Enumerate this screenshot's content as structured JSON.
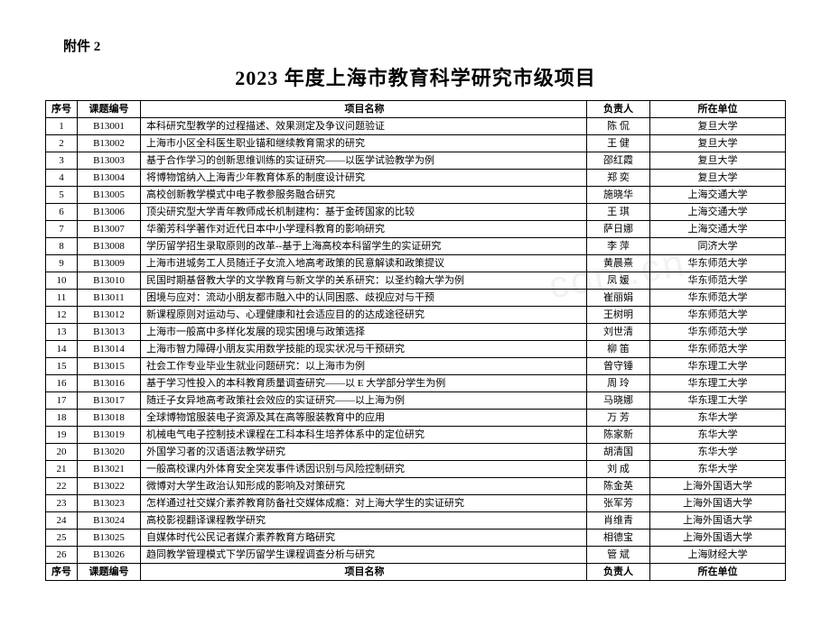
{
  "attachment_label": "附件 2",
  "title": "2023 年度上海市教育科学研究市级项目",
  "watermark": "com.cn",
  "headers": {
    "seq": "序号",
    "code": "课题编号",
    "name": "项目名称",
    "person": "负责人",
    "unit": "所在单位"
  },
  "rows": [
    {
      "seq": "1",
      "code": "B13001",
      "name": "本科研究型教学的过程描述、效果测定及争议问题验证",
      "person": "陈  侃",
      "unit": "复旦大学"
    },
    {
      "seq": "2",
      "code": "B13002",
      "name": "上海市小区全科医生职业锚和继续教育需求的研究",
      "person": "王  健",
      "unit": "复旦大学"
    },
    {
      "seq": "3",
      "code": "B13003",
      "name": "基于合作学习的创新思维训练的实证研究——以医学试验教学为例",
      "person": "邵红霞",
      "unit": "复旦大学"
    },
    {
      "seq": "4",
      "code": "B13004",
      "name": "将博物馆纳入上海青少年教育体系的制度设计研究",
      "person": "郑  奕",
      "unit": "复旦大学"
    },
    {
      "seq": "5",
      "code": "B13005",
      "name": "高校创新教学模式中电子教参服务融合研究",
      "person": "施晓华",
      "unit": "上海交通大学"
    },
    {
      "seq": "6",
      "code": "B13006",
      "name": "顶尖研究型大学青年教师成长机制建构：基于金砖国家的比较",
      "person": "王  琪",
      "unit": "上海交通大学"
    },
    {
      "seq": "7",
      "code": "B13007",
      "name": "华蘅芳科学著作对近代日本中小学理科教育的影响研究",
      "person": "萨日娜",
      "unit": "上海交通大学"
    },
    {
      "seq": "8",
      "code": "B13008",
      "name": "学历留学招生录取原则的改革--基于上海高校本科留学生的实证研究",
      "person": "李  萍",
      "unit": "同济大学"
    },
    {
      "seq": "9",
      "code": "B13009",
      "name": "上海市进城务工人员随迁子女流入地高考政策的民意解读和政策提议",
      "person": "黄晨熹",
      "unit": "华东师范大学"
    },
    {
      "seq": "10",
      "code": "B13010",
      "name": "民国时期基督教大学的文学教育与新文学的关系研究：以圣约翰大学为例",
      "person": "凤  媛",
      "unit": "华东师范大学"
    },
    {
      "seq": "11",
      "code": "B13011",
      "name": "困境与应对：流动小朋友都市融入中的认同困惑、歧视应对与干预",
      "person": "崔丽娟",
      "unit": "华东师范大学"
    },
    {
      "seq": "12",
      "code": "B13012",
      "name": "新课程原则对运动与、心理健康和社会适应目的的达成途径研究",
      "person": "王树明",
      "unit": "华东师范大学"
    },
    {
      "seq": "13",
      "code": "B13013",
      "name": "上海市一般高中多样化发展的现实困境与政策选择",
      "person": "刘世清",
      "unit": "华东师范大学"
    },
    {
      "seq": "14",
      "code": "B13014",
      "name": "上海市智力障碍小朋友实用数学技能的现实状况与干预研究",
      "person": "柳  笛",
      "unit": "华东师范大学"
    },
    {
      "seq": "15",
      "code": "B13015",
      "name": "社会工作专业毕业生就业问题研究：以上海市为例",
      "person": "曾守锤",
      "unit": "华东理工大学"
    },
    {
      "seq": "16",
      "code": "B13016",
      "name": "基于学习性投入的本科教育质量调查研究——以 E 大学部分学生为例",
      "person": "周  玲",
      "unit": "华东理工大学"
    },
    {
      "seq": "17",
      "code": "B13017",
      "name": "随迁子女异地高考政策社会效应的实证研究——以上海为例",
      "person": "马晓娜",
      "unit": "华东理工大学"
    },
    {
      "seq": "18",
      "code": "B13018",
      "name": "全球博物馆服装电子资源及其在高等服装教育中的应用",
      "person": "万  芳",
      "unit": "东华大学"
    },
    {
      "seq": "19",
      "code": "B13019",
      "name": "机械电气电子控制技术课程在工科本科生培养体系中的定位研究",
      "person": "陈家新",
      "unit": "东华大学"
    },
    {
      "seq": "20",
      "code": "B13020",
      "name": "外国学习者的汉语语法教学研究",
      "person": "胡清国",
      "unit": "东华大学"
    },
    {
      "seq": "21",
      "code": "B13021",
      "name": "一般高校课内外体育安全突发事件诱因识别与风险控制研究",
      "person": "刘  成",
      "unit": "东华大学"
    },
    {
      "seq": "22",
      "code": "B13022",
      "name": "微博对大学生政治认知形成的影响及对策研究",
      "person": "陈金英",
      "unit": "上海外国语大学"
    },
    {
      "seq": "23",
      "code": "B13023",
      "name": "怎样通过社交媒介素养教育防备社交媒体成瘾：对上海大学生的实证研究",
      "person": "张军芳",
      "unit": "上海外国语大学"
    },
    {
      "seq": "24",
      "code": "B13024",
      "name": "高校影视翻译课程教学研究",
      "person": "肖维青",
      "unit": "上海外国语大学"
    },
    {
      "seq": "25",
      "code": "B13025",
      "name": "自媒体时代公民记者媒介素养教育方略研究",
      "person": "相德宝",
      "unit": "上海外国语大学"
    },
    {
      "seq": "26",
      "code": "B13026",
      "name": "趋同教学管理模式下学历留学生课程调查分析与研究",
      "person": "管  斌",
      "unit": "上海财经大学"
    }
  ]
}
